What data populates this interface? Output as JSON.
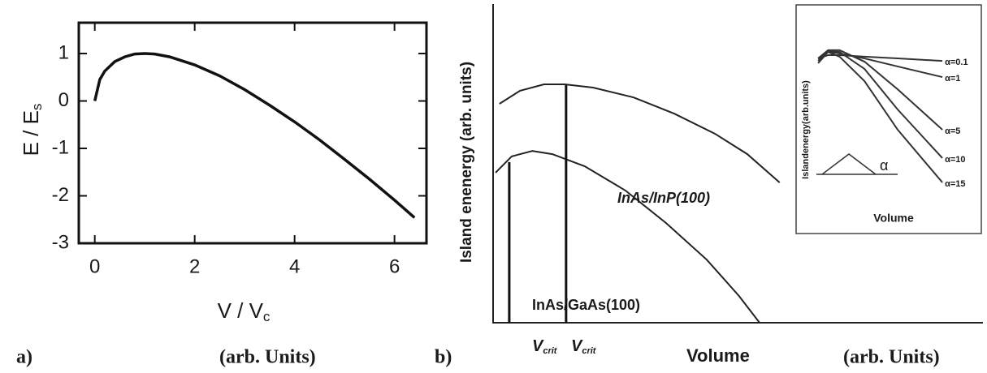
{
  "chart_data": [
    {
      "type": "line",
      "xlabel": "V / V",
      "xlabel_sub": "c",
      "ylabel": "E / E",
      "ylabel_sub": "s",
      "xlim": [
        -0.32,
        6.64
      ],
      "ylim": [
        -3,
        1.65
      ],
      "xticks": [
        0,
        2,
        4,
        6
      ],
      "yticks": [
        1,
        0,
        -1,
        -2,
        -3
      ],
      "color": "#111111",
      "series": [
        {
          "x": [
            0,
            0.1,
            0.2,
            0.4,
            0.6,
            0.8,
            1.0,
            1.2,
            1.5,
            2.0,
            2.5,
            3.0,
            3.5,
            4.0,
            4.5,
            5.0,
            5.5,
            6.0,
            6.4
          ],
          "values": [
            0,
            0.45,
            0.63,
            0.83,
            0.93,
            0.99,
            1,
            0.99,
            0.93,
            0.76,
            0.53,
            0.24,
            -0.09,
            -0.44,
            -0.82,
            -1.23,
            -1.65,
            -2.09,
            -2.46
          ]
        }
      ]
    },
    {
      "type": "line",
      "xlabel": "Volume",
      "ylabel": "Island enenergy (arb. units)",
      "xlim": [
        0,
        100
      ],
      "ylim": [
        0,
        100
      ],
      "color": "#222222",
      "series": [
        {
          "name": "InAs/InP(100)",
          "x": [
            1.3,
            5.5,
            10.4,
            14.6,
            20.4,
            28.7,
            37.0,
            45.3,
            51.9,
            58.5
          ],
          "values": [
            68.7,
            72.8,
            74.8,
            74.8,
            73.8,
            70.7,
            65.6,
            59.3,
            52.9,
            44.0
          ]
        },
        {
          "name": "InAs/GaAs(100)",
          "x": [
            0.5,
            3.8,
            8.0,
            12.1,
            18.7,
            27.0,
            35.3,
            43.6,
            50.2,
            54.4
          ],
          "values": [
            47.1,
            52.2,
            53.9,
            52.9,
            49.1,
            41.5,
            31.3,
            19.8,
            8.4,
            0
          ]
        }
      ],
      "markers": [
        {
          "label": "V",
          "sub": "crit",
          "x": 3.3,
          "top": 50.4
        },
        {
          "label": "V",
          "sub": "crit",
          "x": 14.9,
          "top": 74.6
        }
      ]
    },
    {
      "type": "line",
      "xlabel": "Volume",
      "ylabel": "Islandenergy(arb.units)",
      "annotation": "α",
      "xlim": [
        0,
        100
      ],
      "ylim": [
        0,
        100
      ],
      "color": "#333333",
      "series": [
        {
          "name": "α=0.1",
          "x": [
            2,
            8,
            15,
            30,
            50,
            77
          ],
          "values": [
            73.6,
            75.3,
            75.3,
            74.5,
            73.6,
            72.3
          ]
        },
        {
          "name": "α=1",
          "x": [
            2,
            8,
            15,
            30,
            50,
            77
          ],
          "values": [
            73.6,
            77.0,
            76.2,
            73.6,
            69.4,
            63.8
          ]
        },
        {
          "name": "α=5",
          "x": [
            2,
            8,
            15,
            30,
            50,
            77
          ],
          "values": [
            73.6,
            77.9,
            77.9,
            71.9,
            57.4,
            36.2
          ]
        },
        {
          "name": "α=10",
          "x": [
            2,
            8,
            15,
            30,
            50,
            77
          ],
          "values": [
            72.3,
            77.4,
            77.0,
            68.1,
            46.8,
            21.3
          ]
        },
        {
          "name": "α=15",
          "x": [
            2,
            8,
            15,
            30,
            50,
            77
          ],
          "values": [
            71.1,
            77.0,
            74.5,
            61.7,
            36.2,
            8.5
          ]
        }
      ]
    }
  ],
  "captions": [
    "a)",
    "(arb. Units)",
    "b)",
    "(arb. Units)"
  ]
}
